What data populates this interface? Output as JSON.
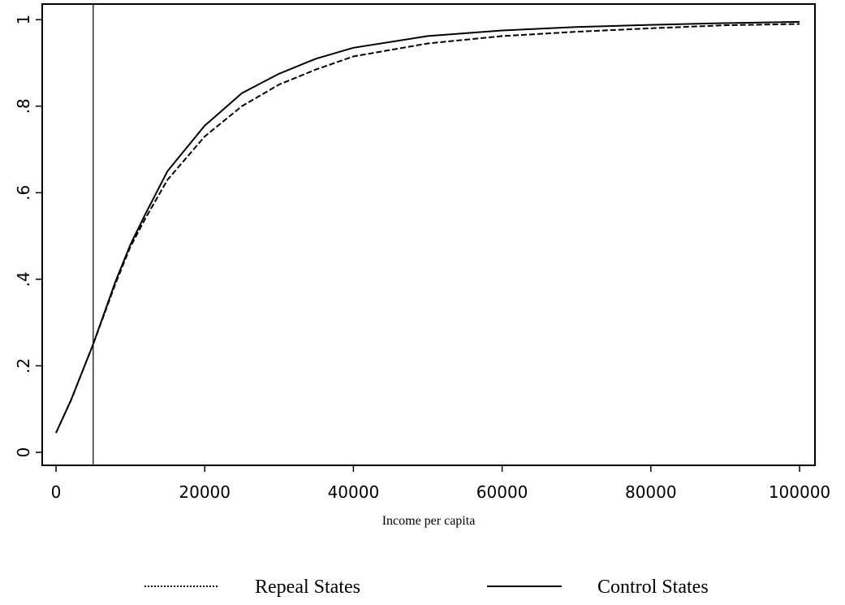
{
  "chart_data": {
    "type": "line",
    "x_label": "Income per capita",
    "x": [
      0,
      2000,
      5000,
      8000,
      10000,
      12000,
      15000,
      20000,
      25000,
      30000,
      35000,
      40000,
      50000,
      60000,
      70000,
      80000,
      90000,
      100000
    ],
    "series": [
      {
        "name": "Repeal States",
        "color": "#000000",
        "style": "dashed",
        "values": [
          0.045,
          0.12,
          0.25,
          0.39,
          0.475,
          0.54,
          0.63,
          0.73,
          0.8,
          0.85,
          0.885,
          0.915,
          0.945,
          0.962,
          0.972,
          0.98,
          0.987,
          0.99
        ]
      },
      {
        "name": "Control States",
        "color": "#000000",
        "style": "solid",
        "values": [
          0.045,
          0.12,
          0.25,
          0.395,
          0.48,
          0.55,
          0.65,
          0.755,
          0.83,
          0.875,
          0.91,
          0.935,
          0.962,
          0.975,
          0.983,
          0.988,
          0.992,
          0.995
        ]
      }
    ],
    "vline": 5000,
    "xlim": [
      -1856,
      102074
    ],
    "ylim": [
      -0.03,
      1.036
    ],
    "xticks": [
      0,
      20000,
      40000,
      60000,
      80000,
      100000
    ],
    "yticks": [
      0,
      {
        "value": 0.2,
        "label": ".2"
      },
      {
        "value": 0.4,
        "label": ".4"
      },
      {
        "value": 0.6,
        "label": ".6"
      },
      {
        "value": 0.8,
        "label": ".8"
      },
      1
    ],
    "legend": "bottom"
  }
}
